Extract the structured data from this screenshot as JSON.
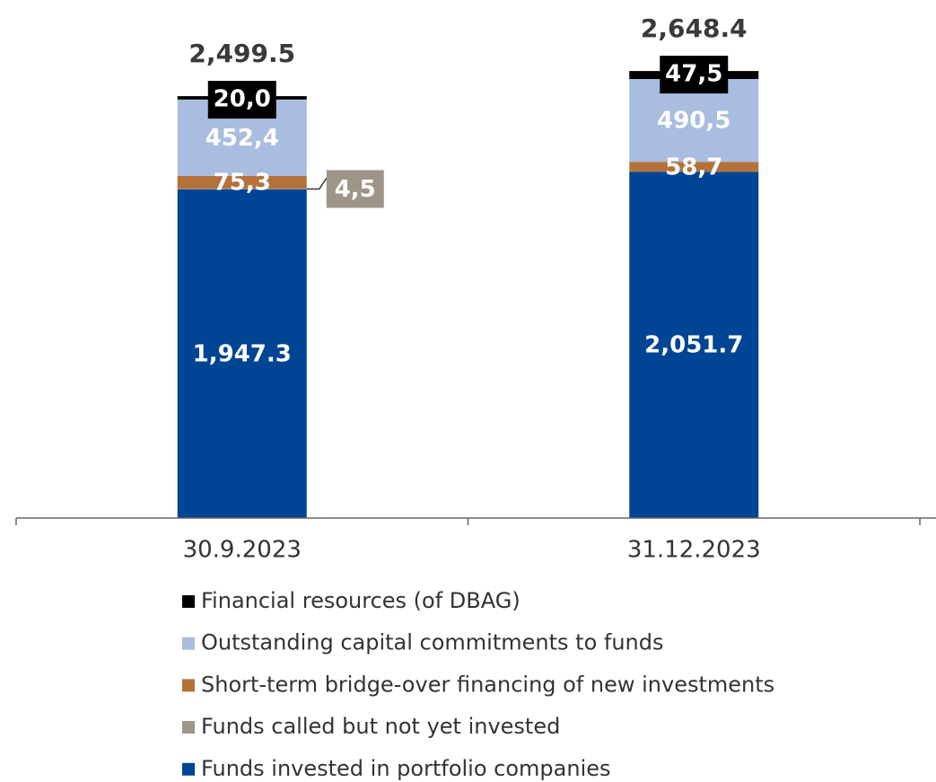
{
  "chart_data": {
    "type": "stacked_bar",
    "categories": [
      "30.9.2023",
      "31.12.2023"
    ],
    "series": [
      {
        "name": "Funds invested in portfolio companies",
        "color": "#004494",
        "values": [
          1947.3,
          2051.7
        ],
        "value_labels": [
          "1,947.3",
          "2,051.7"
        ]
      },
      {
        "name": "Funds called but not yet invested",
        "color": "#9e9589",
        "values": [
          4.5,
          0
        ],
        "value_labels": [
          "4,5",
          null
        ]
      },
      {
        "name": "Short-term bridge-over financing of new investments",
        "color": "#b5713a",
        "values": [
          75.3,
          58.7
        ],
        "value_labels": [
          "75,3",
          "58,7"
        ]
      },
      {
        "name": "Outstanding capital commitments to funds",
        "color": "#a8bde0",
        "values": [
          452.4,
          490.5
        ],
        "value_labels": [
          "452,4",
          "490,5"
        ]
      },
      {
        "name": "Financial resources (of DBAG)",
        "color": "#000000",
        "values": [
          20.0,
          47.5
        ],
        "value_labels": [
          "20,0",
          "47,5"
        ]
      }
    ],
    "totals": [
      2499.5,
      2648.4
    ],
    "total_labels": [
      "2,499.5",
      "2,648.4"
    ],
    "ylim": [
      0,
      3000
    ]
  }
}
